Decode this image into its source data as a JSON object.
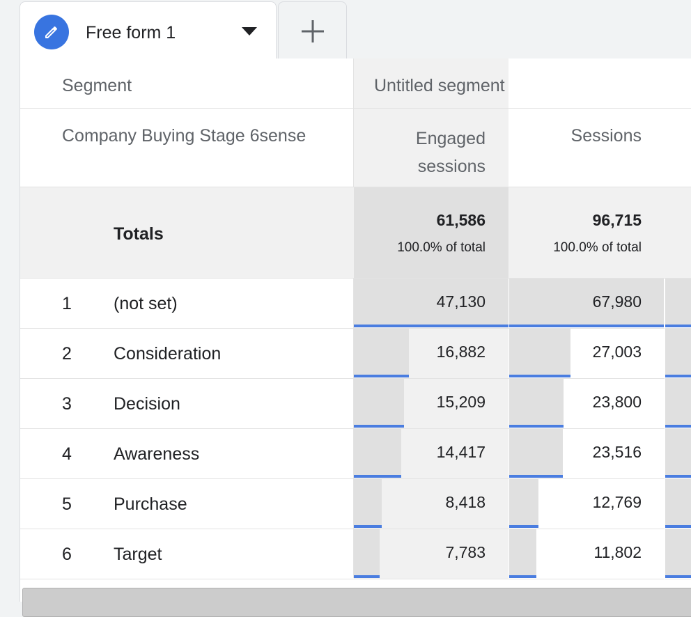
{
  "tabs": [
    {
      "label": "Free form 1"
    }
  ],
  "table": {
    "segment_label": "Segment",
    "segment_name": "Untitled segment",
    "dimension_header": "Company Buying Stage 6sense",
    "metric_headers": [
      "Engaged sessions",
      "Sessions"
    ],
    "totals": {
      "label": "Totals",
      "values": [
        "61,586",
        "96,715"
      ],
      "subs": [
        "100.0% of total",
        "100.0% of total"
      ]
    },
    "rows": [
      {
        "rank": "1",
        "name": "(not set)",
        "v1": "47,130",
        "v2": "67,980",
        "f1": 1.0,
        "f2": 1.0
      },
      {
        "rank": "2",
        "name": "Consideration",
        "v1": "16,882",
        "v2": "27,003",
        "f1": 0.358,
        "f2": 0.397
      },
      {
        "rank": "3",
        "name": "Decision",
        "v1": "15,209",
        "v2": "23,800",
        "f1": 0.323,
        "f2": 0.35
      },
      {
        "rank": "4",
        "name": "Awareness",
        "v1": "14,417",
        "v2": "23,516",
        "f1": 0.306,
        "f2": 0.346
      },
      {
        "rank": "5",
        "name": "Purchase",
        "v1": "8,418",
        "v2": "12,769",
        "f1": 0.179,
        "f2": 0.188
      },
      {
        "rank": "6",
        "name": "Target",
        "v1": "7,783",
        "v2": "11,802",
        "f1": 0.165,
        "f2": 0.174
      }
    ]
  },
  "colors": {
    "accent": "#4a7de0",
    "icon_bg": "#3874e0",
    "bar_bg": "#e0e0e0"
  },
  "icons": [
    "pencil-icon",
    "caret-down-icon",
    "plus-icon"
  ]
}
